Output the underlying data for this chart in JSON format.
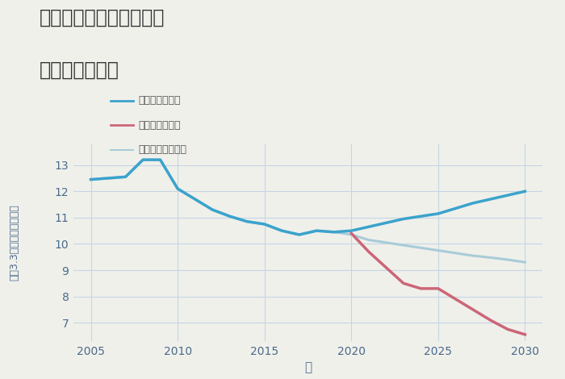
{
  "title_line1": "三重県松阪市中ノ庄町の",
  "title_line2": "土地の価格推移",
  "xlabel": "年",
  "ylabel": "坪（3.3㎡）単価（万円）",
  "background_color": "#f0f0eb",
  "plot_background_color": "#f0f0eb",
  "grid_color": "#c5d5e5",
  "xlim": [
    2004,
    2031
  ],
  "ylim": [
    6.3,
    13.8
  ],
  "yticks": [
    7,
    8,
    9,
    10,
    11,
    12,
    13
  ],
  "xticks": [
    2005,
    2010,
    2015,
    2020,
    2025,
    2030
  ],
  "good_scenario": {
    "x": [
      2005,
      2006,
      2007,
      2008,
      2009,
      2010,
      2011,
      2012,
      2013,
      2014,
      2015,
      2016,
      2017,
      2018,
      2019,
      2020,
      2021,
      2022,
      2023,
      2024,
      2025,
      2026,
      2027,
      2028,
      2029,
      2030
    ],
    "y": [
      12.45,
      12.5,
      12.55,
      13.2,
      13.2,
      12.1,
      11.7,
      11.3,
      11.05,
      10.85,
      10.75,
      10.5,
      10.35,
      10.5,
      10.45,
      10.5,
      10.65,
      10.8,
      10.95,
      11.05,
      11.15,
      11.35,
      11.55,
      11.7,
      11.85,
      12.0
    ],
    "color": "#3ba3cc",
    "linewidth": 2.5,
    "label": "グッドシナリオ"
  },
  "bad_scenario": {
    "x": [
      2020,
      2021,
      2022,
      2023,
      2024,
      2025,
      2026,
      2027,
      2028,
      2029,
      2030
    ],
    "y": [
      10.4,
      9.7,
      9.1,
      8.5,
      8.3,
      8.3,
      7.9,
      7.5,
      7.1,
      6.75,
      6.55
    ],
    "color": "#cc6677",
    "linewidth": 2.5,
    "label": "バッドシナリオ"
  },
  "normal_scenario": {
    "x": [
      2005,
      2006,
      2007,
      2008,
      2009,
      2010,
      2011,
      2012,
      2013,
      2014,
      2015,
      2016,
      2017,
      2018,
      2019,
      2020,
      2021,
      2022,
      2023,
      2024,
      2025,
      2026,
      2027,
      2028,
      2029,
      2030
    ],
    "y": [
      12.45,
      12.5,
      12.55,
      13.2,
      13.2,
      12.1,
      11.7,
      11.3,
      11.05,
      10.85,
      10.75,
      10.5,
      10.35,
      10.5,
      10.45,
      10.35,
      10.15,
      10.05,
      9.95,
      9.85,
      9.75,
      9.65,
      9.55,
      9.48,
      9.4,
      9.3
    ],
    "color": "#a8ccd8",
    "linewidth": 2.2,
    "label": "ノーマルシナリオ"
  }
}
